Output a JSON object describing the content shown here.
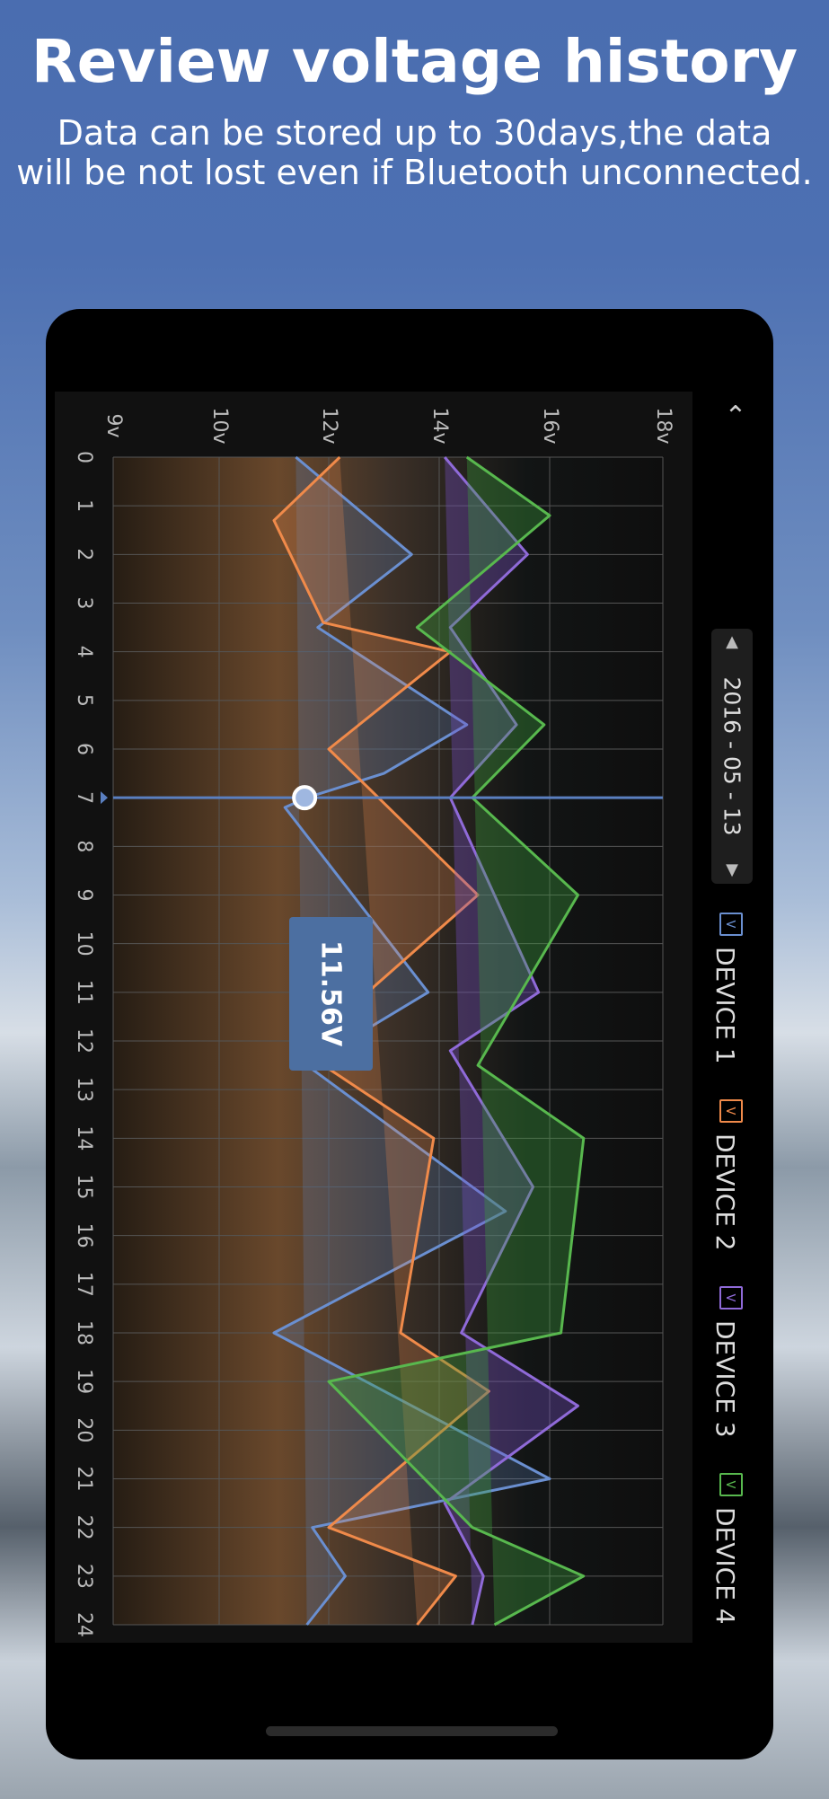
{
  "headline": "Review voltage history",
  "subheadline_line1": "Data can be stored up to 30days,the data",
  "subheadline_line2": "will be not lost even if Bluetooth unconnected.",
  "date": "2016 - 05 - 13",
  "tooltip_value": "11.56V",
  "legend": [
    {
      "label": "DEVICE 1",
      "color": "#6a8fd0"
    },
    {
      "label": "DEVICE 2",
      "color": "#f08a4a"
    },
    {
      "label": "DEVICE 3",
      "color": "#8f6ad8"
    },
    {
      "label": "DEVICE 4",
      "color": "#58b84e"
    }
  ],
  "chart_data": {
    "type": "area",
    "orientation": "rotated-90",
    "x_label_ticks": [
      "0",
      "1",
      "2",
      "3",
      "4",
      "5",
      "6",
      "7",
      "8",
      "9",
      "10",
      "11",
      "12",
      "13",
      "14",
      "15",
      "16",
      "17",
      "18",
      "19",
      "20",
      "21",
      "22",
      "23",
      "24"
    ],
    "voltage_ticks": [
      "9v",
      "10v",
      "12v",
      "14v",
      "16v",
      "18v"
    ],
    "voltage_range": [
      9,
      18
    ],
    "selected_hour": 7,
    "selected_value": 11.56,
    "series": [
      {
        "name": "DEVICE 1",
        "color": "#6a8fd0",
        "values": [
          [
            0,
            11.4
          ],
          [
            2,
            13.5
          ],
          [
            3.5,
            11.8
          ],
          [
            5.5,
            14.5
          ],
          [
            6.5,
            13.0
          ],
          [
            7,
            11.6
          ],
          [
            7.2,
            11.2
          ],
          [
            11,
            13.8
          ],
          [
            12.5,
            11.6
          ],
          [
            15.5,
            15.2
          ],
          [
            18,
            11.0
          ],
          [
            21,
            16.0
          ],
          [
            22,
            11.7
          ],
          [
            23,
            12.3
          ],
          [
            24,
            11.6
          ]
        ]
      },
      {
        "name": "DEVICE 2",
        "color": "#f08a4a",
        "values": [
          [
            0,
            12.2
          ],
          [
            1.3,
            11.0
          ],
          [
            3.4,
            11.9
          ],
          [
            4,
            14.2
          ],
          [
            6,
            12.0
          ],
          [
            9,
            14.7
          ],
          [
            12.2,
            11.5
          ],
          [
            14,
            13.9
          ],
          [
            18,
            13.3
          ],
          [
            19.2,
            14.9
          ],
          [
            22,
            12.0
          ],
          [
            23,
            14.3
          ],
          [
            24,
            13.6
          ]
        ]
      },
      {
        "name": "DEVICE 3",
        "color": "#8f6ad8",
        "values": [
          [
            0,
            14.1
          ],
          [
            2,
            15.6
          ],
          [
            3.5,
            14.2
          ],
          [
            5.5,
            15.4
          ],
          [
            7,
            14.2
          ],
          [
            11,
            15.8
          ],
          [
            12.2,
            14.2
          ],
          [
            15,
            15.7
          ],
          [
            18,
            14.4
          ],
          [
            19.5,
            16.5
          ],
          [
            21.5,
            14.1
          ],
          [
            23,
            14.8
          ],
          [
            24,
            14.6
          ]
        ]
      },
      {
        "name": "DEVICE 4",
        "color": "#58b84e",
        "values": [
          [
            0,
            14.5
          ],
          [
            1.2,
            16.0
          ],
          [
            3.5,
            13.6
          ],
          [
            5.5,
            15.9
          ],
          [
            7,
            14.6
          ],
          [
            9,
            16.5
          ],
          [
            12.5,
            14.7
          ],
          [
            14,
            16.6
          ],
          [
            18,
            16.2
          ],
          [
            19,
            12.0
          ],
          [
            22,
            14.6
          ],
          [
            23,
            16.6
          ],
          [
            24,
            15.0
          ]
        ]
      }
    ]
  }
}
